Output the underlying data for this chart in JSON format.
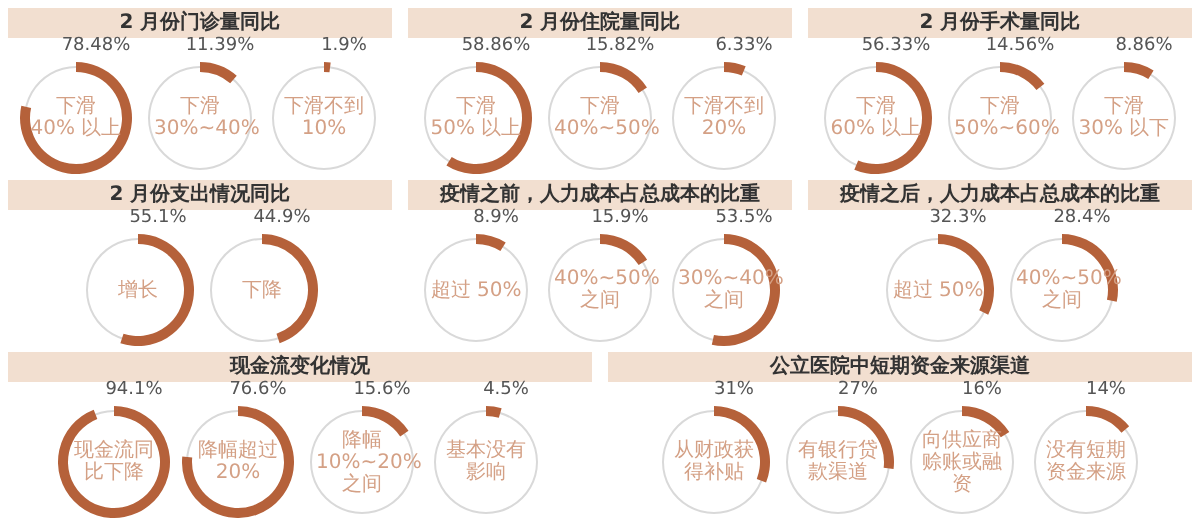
{
  "chart_data": [
    {
      "type": "other",
      "title": "2 月份门诊量同比",
      "categories": [
        "下滑\n40% 以上",
        "下滑\n30%~40%",
        "下滑不到 10%"
      ],
      "values": [
        78.48,
        11.39,
        1.9
      ],
      "value_labels": [
        "78.48%",
        "11.39%",
        "1.9%"
      ],
      "color": "#b5613a"
    },
    {
      "type": "other",
      "title": "2 月份住院量同比",
      "categories": [
        "下滑\n50% 以上",
        "下滑\n40%~50%",
        "下滑不到 20%"
      ],
      "values": [
        58.86,
        15.82,
        6.33
      ],
      "value_labels": [
        "58.86%",
        "15.82%",
        "6.33%"
      ],
      "color": "#b5613a"
    },
    {
      "type": "other",
      "title": "2 月份手术量同比",
      "categories": [
        "下滑\n60% 以上",
        "下滑\n50%~60%",
        "下滑\n30% 以下"
      ],
      "values": [
        56.33,
        14.56,
        8.86
      ],
      "value_labels": [
        "56.33%",
        "14.56%",
        "8.86%"
      ],
      "color": "#b5613a"
    },
    {
      "type": "other",
      "title": "2 月份支出情况同比",
      "categories": [
        "增长",
        "下降"
      ],
      "values": [
        55.1,
        44.9
      ],
      "value_labels": [
        "55.1%",
        "44.9%"
      ],
      "color": "#b5613a"
    },
    {
      "type": "other",
      "title": "疫情之前，人力成本占总成本的比重",
      "categories": [
        "超过 50%",
        "40%~50%\n之间",
        "30%~40%\n之间"
      ],
      "values": [
        8.9,
        15.9,
        53.5
      ],
      "value_labels": [
        "8.9%",
        "15.9%",
        "53.5%"
      ],
      "color": "#b5613a"
    },
    {
      "type": "other",
      "title": "疫情之后，人力成本占总成本的比重",
      "categories": [
        "超过 50%",
        "40%~50%\n之间"
      ],
      "values": [
        32.3,
        28.4
      ],
      "value_labels": [
        "32.3%",
        "28.4%"
      ],
      "color": "#b5613a"
    },
    {
      "type": "other",
      "title": "现金流变化情况",
      "categories": [
        "现金流同比下降",
        "降幅超过 20%",
        "降幅\n10%~20%\n之间",
        "基本没有影响"
      ],
      "values": [
        94.1,
        76.6,
        15.6,
        4.5
      ],
      "value_labels": [
        "94.1%",
        "76.6%",
        "15.6%",
        "4.5%"
      ],
      "color": "#b5613a"
    },
    {
      "type": "other",
      "title": "公立医院中短期资金来源渠道",
      "categories": [
        "从财政获得补贴",
        "有银行贷款渠道",
        "向供应商赊账或融资",
        "没有短期资金来源"
      ],
      "values": [
        31,
        27,
        16,
        14
      ],
      "value_labels": [
        "31%",
        "27%",
        "16%",
        "14%"
      ],
      "color": "#b5613a"
    }
  ]
}
